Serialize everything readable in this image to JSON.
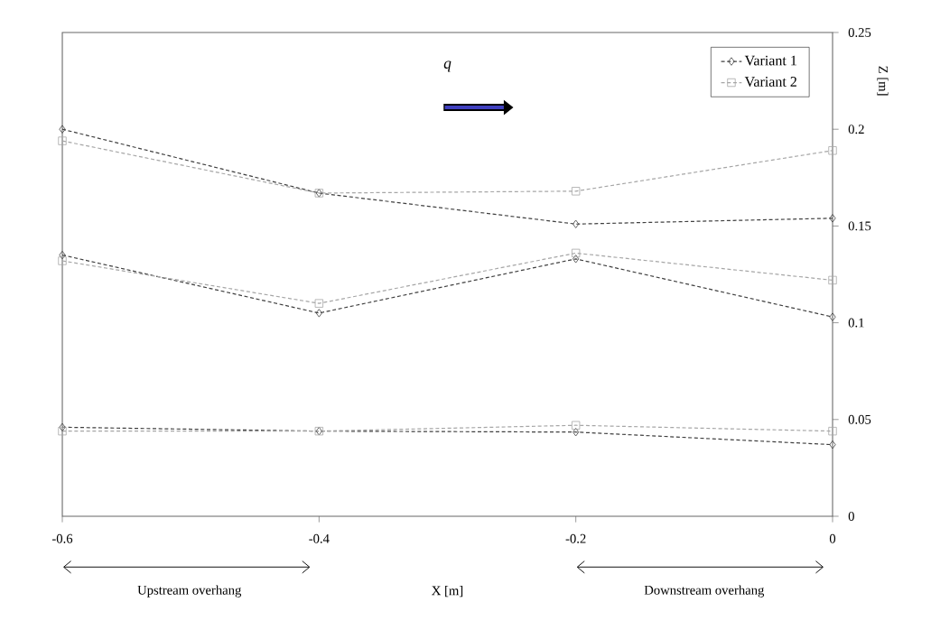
{
  "chart_data": {
    "type": "line",
    "xlabel": "X [m]",
    "ylabel": "Z [m]",
    "xlim": [
      -0.6,
      0
    ],
    "xticks": [
      -0.6,
      -0.4,
      -0.2,
      0
    ],
    "ylim": [
      0,
      0.25
    ],
    "yticks": [
      0,
      0.05,
      0.1,
      0.15,
      0.2,
      0.25
    ],
    "legend": "top right",
    "line_style": "dashed",
    "grid": false,
    "annotations": [
      "q",
      "Upstream overhang",
      "Downstream overhang"
    ],
    "series": [
      {
        "name": "Variant 1",
        "color": "#404040",
        "marker": "diamond",
        "x": [
          -0.6,
          -0.4,
          -0.2,
          0
        ],
        "values": [
          0.2,
          0.167,
          0.151,
          0.154
        ]
      },
      {
        "name": "Variant 2",
        "color": "#a6a6a6",
        "marker": "square",
        "x": [
          -0.6,
          -0.4,
          -0.2,
          0
        ],
        "values": [
          0.194,
          0.167,
          0.168,
          0.189
        ]
      },
      {
        "color": "#404040",
        "marker": "diamond",
        "x": [
          -0.6,
          -0.4,
          -0.2,
          0
        ],
        "values": [
          0.135,
          0.105,
          0.133,
          0.103
        ]
      },
      {
        "color": "#a6a6a6",
        "marker": "square",
        "x": [
          -0.6,
          -0.4,
          -0.2,
          0
        ],
        "values": [
          0.132,
          0.11,
          0.136,
          0.122
        ]
      },
      {
        "color": "#404040",
        "marker": "diamond",
        "x": [
          -0.6,
          -0.4,
          -0.2,
          0
        ],
        "values": [
          0.046,
          0.044,
          0.0435,
          0.037
        ]
      },
      {
        "color": "#a6a6a6",
        "marker": "square",
        "x": [
          -0.6,
          -0.4,
          -0.2,
          0
        ],
        "values": [
          0.044,
          0.044,
          0.047,
          0.044
        ]
      }
    ]
  }
}
